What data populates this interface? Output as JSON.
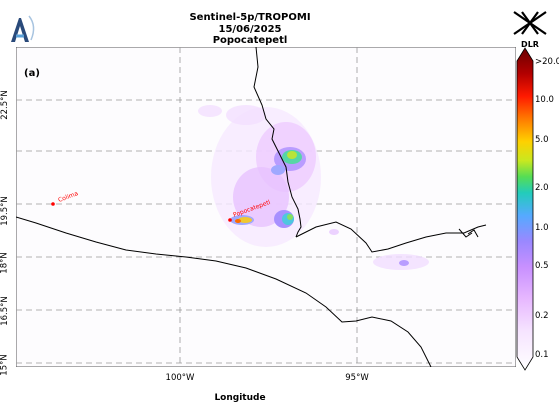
{
  "header": {
    "title_line1": "Sentinel-5p/TROPOMI",
    "title_line2": "15/06/2025",
    "title_line3": "Popocatepetl"
  },
  "logos": {
    "left": "atmosphere-a-icon",
    "right_text": "DLR"
  },
  "map": {
    "panel_label": "(a)",
    "x_axis_title": "Longitude",
    "lat_labels": [
      "22.5°N",
      "19.5°N",
      "18°N",
      "16.5°N",
      "15°N"
    ],
    "lon_labels": [
      "100°W",
      "95°W"
    ],
    "volcano_markers": [
      {
        "name": "Colima",
        "color": "#ff0000"
      },
      {
        "name": "Popocatepetl",
        "color": "#ff0000"
      }
    ]
  },
  "colorbar": {
    "labels": [
      ">20.0",
      "10.0",
      "5.0",
      "2.0",
      "1.0",
      "0.5",
      "0.2",
      "0.1"
    ],
    "colors": [
      "#7a0000",
      "#cc0000",
      "#ff3300",
      "#ff8800",
      "#ffcc00",
      "#ddee00",
      "#66dd33",
      "#22ccaa",
      "#33bbee",
      "#6699ff",
      "#aa88ff",
      "#dd99ff",
      "#eeccff",
      "#f8eeff",
      "#ffffff"
    ]
  }
}
